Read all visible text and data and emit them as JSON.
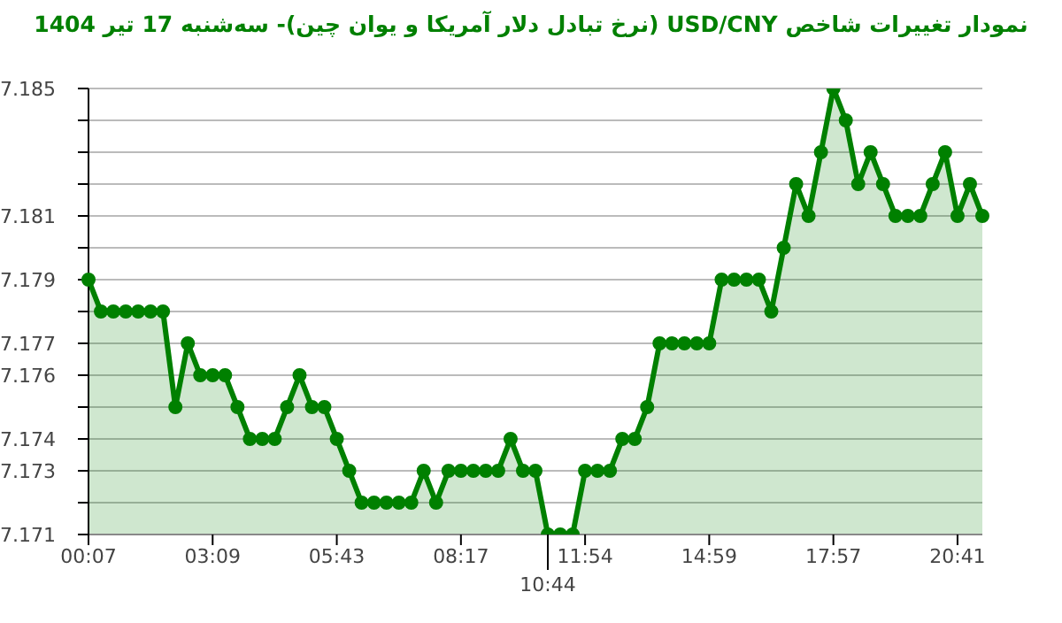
{
  "chart_data": {
    "type": "area",
    "title": "نمودار تغییرات شاخص USD/CNY (نرخ تبادل دلار آمریکا و یوان چین)- سه‌شنبه  17 تیر 1404",
    "categories": [
      "00:07",
      null,
      null,
      null,
      null,
      null,
      null,
      null,
      null,
      null,
      "03:09",
      null,
      null,
      null,
      null,
      null,
      null,
      null,
      null,
      null,
      "05:43",
      null,
      null,
      null,
      null,
      null,
      null,
      null,
      null,
      null,
      "08:17",
      null,
      null,
      null,
      null,
      null,
      null,
      "10:44",
      null,
      null,
      "11:54",
      null,
      null,
      null,
      null,
      null,
      null,
      null,
      null,
      null,
      "14:59",
      null,
      null,
      null,
      null,
      null,
      null,
      null,
      null,
      null,
      "17:57",
      null,
      null,
      null,
      null,
      null,
      null,
      null,
      null,
      null,
      "20:41",
      null,
      null
    ],
    "series": [
      {
        "color": "#008000",
        "values": [
          7.179,
          7.178,
          7.178,
          7.178,
          7.178,
          7.178,
          7.178,
          7.175,
          7.177,
          7.176,
          7.176,
          7.176,
          7.175,
          7.174,
          7.174,
          7.174,
          7.175,
          7.176,
          7.175,
          7.175,
          7.174,
          7.173,
          7.172,
          7.172,
          7.172,
          7.172,
          7.172,
          7.173,
          7.172,
          7.173,
          7.173,
          7.173,
          7.173,
          7.173,
          7.174,
          7.173,
          7.173,
          7.171,
          7.171,
          7.171,
          7.173,
          7.173,
          7.173,
          7.174,
          7.174,
          7.175,
          7.177,
          7.177,
          7.177,
          7.177,
          7.177,
          7.179,
          7.179,
          7.179,
          7.179,
          7.178,
          7.18,
          7.182,
          7.181,
          7.183,
          7.185,
          7.184,
          7.182,
          7.183,
          7.182,
          7.181,
          7.181,
          7.181,
          7.182,
          7.183,
          7.181,
          7.182,
          7.181
        ]
      }
    ],
    "ylim": [
      7.171,
      7.185
    ],
    "yticks": [
      7.171,
      {
        "value": 7.172,
        "label": null
      },
      7.173,
      7.174,
      {
        "value": 7.175,
        "label": null
      },
      7.176,
      7.177,
      {
        "value": 7.178,
        "label": null
      },
      7.179,
      {
        "value": 7.18,
        "label": null
      },
      7.181,
      {
        "value": 7.182,
        "label": null
      },
      {
        "value": 7.183,
        "label": null
      },
      {
        "value": 7.184,
        "label": null
      },
      7.185
    ],
    "grid": "y",
    "marker": "circle"
  }
}
